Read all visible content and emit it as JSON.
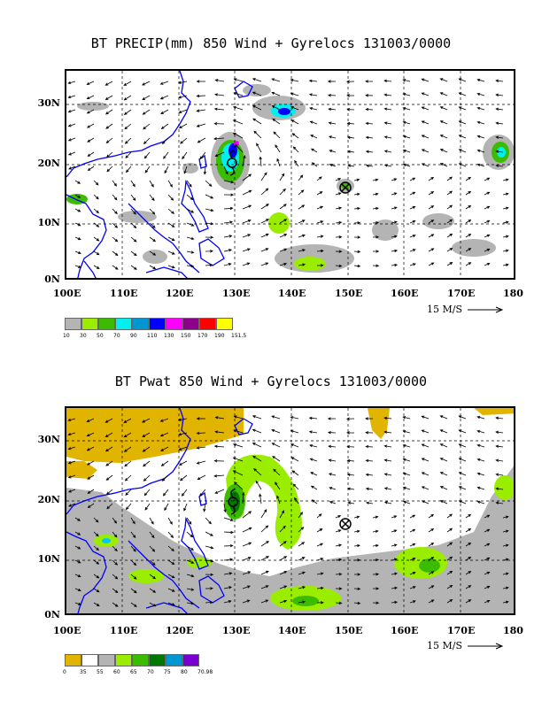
{
  "panels": [
    {
      "title": "BT PRECIP(mm) 850 Wind + Gyrelocs 131003/0000",
      "scale_label": "15 M/S",
      "legend_colors": [
        "#b4b4b4",
        "#9bed00",
        "#3cbc00",
        "#00f0f0",
        "#0096d2",
        "#0000ff",
        "#ff00ff",
        "#8c008c",
        "#ff0000",
        "#ffff00"
      ],
      "legend_labels": [
        "10",
        "30",
        "50",
        "70",
        "90",
        "110",
        "130",
        "150",
        "170",
        "190",
        "151.5"
      ]
    },
    {
      "title": "BT Pwat 850 Wind + Gyrelocs 131003/0000",
      "scale_label": "15 M/S",
      "legend_colors": [
        "#e1b400",
        "#ffffff",
        "#b4b4b4",
        "#9bed00",
        "#3cbc00",
        "#007800",
        "#0096d2",
        "#7800d2"
      ],
      "legend_labels": [
        "0",
        "35",
        "55",
        "60",
        "65",
        "70",
        "75",
        "80",
        "70.98"
      ]
    }
  ],
  "x_ticks": [
    "100E",
    "110E",
    "120E",
    "130E",
    "140E",
    "150E",
    "160E",
    "170E",
    "180"
  ],
  "y_ticks": [
    "30N",
    "20N",
    "10N",
    "0N"
  ],
  "icons": {
    "gyre_center": "circled-x-icon",
    "typhoon_symbol": "typhoon-icon",
    "scale_arrow": "long-right-arrow-icon"
  }
}
